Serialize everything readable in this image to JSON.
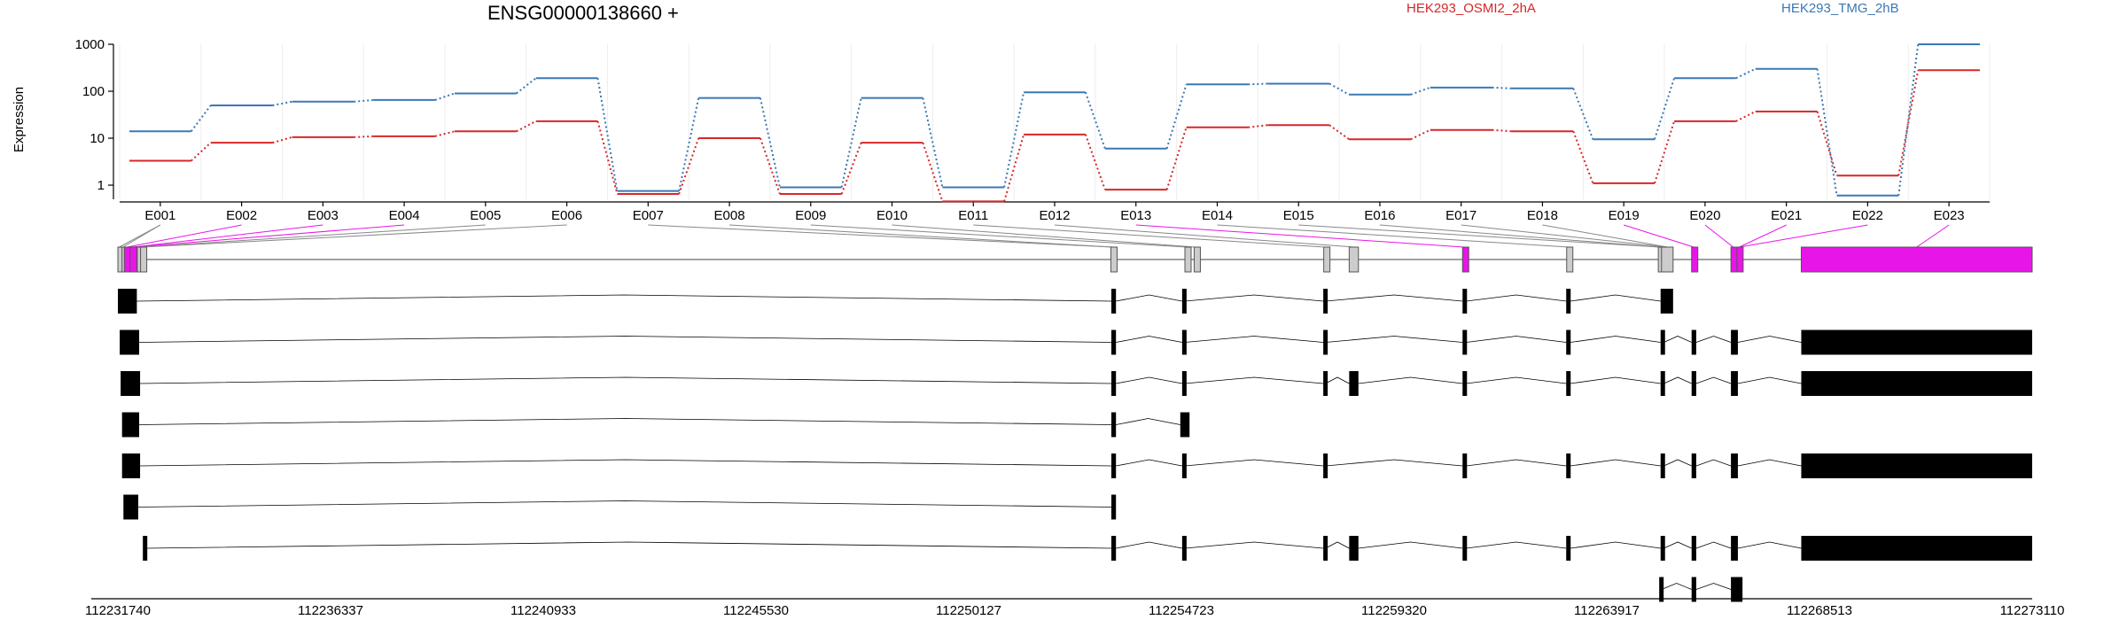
{
  "chart_data": {
    "type": "line",
    "title": "ENSG00000138660 +",
    "ylabel": "Expression",
    "yscale": "log",
    "ylim": [
      0.5,
      1000
    ],
    "yticks": [
      "1",
      "10",
      "100",
      "1000"
    ],
    "grid": true,
    "legend_position": "top",
    "series": [
      {
        "name": "HEK293_OSMI2_2hA",
        "color": "#d62728",
        "values": [
          3.3,
          8,
          10.5,
          11,
          14,
          23,
          0.65,
          10,
          0.65,
          8,
          0.45,
          12,
          0.8,
          17,
          19,
          9.5,
          15,
          14,
          1.1,
          23,
          37,
          1.6,
          280
        ]
      },
      {
        "name": "HEK293_TMG_2hB",
        "color": "#3a78b4",
        "values": [
          14,
          50,
          60,
          65,
          90,
          190,
          0.75,
          72,
          0.9,
          72,
          0.9,
          95,
          6,
          140,
          145,
          85,
          120,
          115,
          9.5,
          190,
          300,
          0.6,
          1000
        ]
      }
    ],
    "exons": [
      "E001",
      "E002",
      "E003",
      "E004",
      "E005",
      "E006",
      "E007",
      "E008",
      "E009",
      "E010",
      "E011",
      "E012",
      "E013",
      "E014",
      "E015",
      "E016",
      "E017",
      "E018",
      "E019",
      "E020",
      "E021",
      "E022",
      "E023"
    ],
    "genomic_axis": {
      "range": [
        112231740,
        112273110
      ],
      "tick_labels": [
        "112231740",
        "112236337",
        "112240933",
        "112245530",
        "112250127",
        "112254723",
        "112259320",
        "112263917",
        "112268513",
        "112273110"
      ]
    },
    "gene_model": {
      "significant_color": "#e815e8",
      "exon_fill": "#cccccc",
      "exons": [
        {
          "start": 112231740,
          "end": 112231800,
          "sig": false
        },
        {
          "start": 112231830,
          "end": 112231870,
          "sig": false
        },
        {
          "start": 112231880,
          "end": 112232000,
          "sig": true
        },
        {
          "start": 112232000,
          "end": 112232150,
          "sig": true
        },
        {
          "start": 112232160,
          "end": 112232220,
          "sig": false
        },
        {
          "start": 112232230,
          "end": 112232300,
          "sig": false
        },
        {
          "start": 112253200,
          "end": 112253300,
          "sig": false
        },
        {
          "start": 112254800,
          "end": 112254900,
          "sig": false
        },
        {
          "start": 112255000,
          "end": 112255050,
          "sig": false
        },
        {
          "start": 112257800,
          "end": 112257850,
          "sig": false
        },
        {
          "start": 112258350,
          "end": 112258550,
          "sig": false
        },
        {
          "start": 112260800,
          "end": 112260900,
          "sig": true
        },
        {
          "start": 112263050,
          "end": 112263150,
          "sig": false
        },
        {
          "start": 112265030,
          "end": 112265100,
          "sig": false
        },
        {
          "start": 112265100,
          "end": 112265350,
          "sig": false
        },
        {
          "start": 112265750,
          "end": 112265850,
          "sig": true
        },
        {
          "start": 112266600,
          "end": 112266700,
          "sig": true
        },
        {
          "start": 112266730,
          "end": 112266830,
          "sig": true
        },
        {
          "start": 112268120,
          "end": 112273110,
          "sig": true
        }
      ],
      "mapping": [
        {
          "exon": "E001",
          "parts": [
            0,
            1
          ]
        },
        {
          "exon": "E002",
          "parts": [
            2
          ]
        },
        {
          "exon": "E003",
          "parts": [
            3
          ]
        },
        {
          "exon": "E004",
          "parts": [
            3
          ]
        },
        {
          "exon": "E005",
          "parts": [
            4
          ]
        },
        {
          "exon": "E006",
          "parts": [
            5
          ]
        },
        {
          "exon": "E007",
          "parts": [
            6
          ]
        },
        {
          "exon": "E008",
          "parts": [
            6
          ]
        },
        {
          "exon": "E009",
          "parts": [
            7
          ]
        },
        {
          "exon": "E010",
          "parts": [
            8
          ]
        },
        {
          "exon": "E011",
          "parts": [
            9
          ]
        },
        {
          "exon": "E012",
          "parts": [
            10
          ]
        },
        {
          "exon": "E013",
          "parts": [
            11
          ]
        },
        {
          "exon": "E014",
          "parts": [
            12
          ]
        },
        {
          "exon": "E015",
          "parts": [
            13
          ]
        },
        {
          "exon": "E016",
          "parts": [
            13
          ]
        },
        {
          "exon": "E017",
          "parts": [
            14
          ]
        },
        {
          "exon": "E018",
          "parts": [
            14
          ]
        },
        {
          "exon": "E019",
          "parts": [
            15
          ]
        },
        {
          "exon": "E020",
          "parts": [
            16
          ]
        },
        {
          "exon": "E021",
          "parts": [
            17
          ]
        },
        {
          "exon": "E022",
          "parts": [
            17
          ]
        },
        {
          "exon": "E023",
          "parts": [
            18
          ]
        }
      ]
    },
    "transcripts": [
      [
        [
          112231740,
          112232150
        ],
        [
          112253210,
          112253310
        ],
        [
          112254740,
          112254800
        ],
        [
          112257790,
          112257840
        ],
        [
          112260800,
          112260880
        ],
        [
          112263040,
          112263130
        ],
        [
          112265080,
          112265350
        ]
      ],
      [
        [
          112231780,
          112232200
        ],
        [
          112253210,
          112253310
        ],
        [
          112254740,
          112254800
        ],
        [
          112257790,
          112257840
        ],
        [
          112260800,
          112260880
        ],
        [
          112263040,
          112263130
        ],
        [
          112265080,
          112265150
        ],
        [
          112265750,
          112265850
        ],
        [
          112266600,
          112266750
        ],
        [
          112268120,
          112273110
        ]
      ],
      [
        [
          112231800,
          112232220
        ],
        [
          112253210,
          112253310
        ],
        [
          112254740,
          112254800
        ],
        [
          112257790,
          112257840
        ],
        [
          112258350,
          112258550
        ],
        [
          112260800,
          112260880
        ],
        [
          112263040,
          112263130
        ],
        [
          112265080,
          112265150
        ],
        [
          112265750,
          112265850
        ],
        [
          112266600,
          112266750
        ],
        [
          112268120,
          112273110
        ]
      ],
      [
        [
          112231830,
          112232200
        ],
        [
          112253210,
          112253310
        ],
        [
          112254700,
          112254900
        ]
      ],
      [
        [
          112231830,
          112232220
        ],
        [
          112253210,
          112253310
        ],
        [
          112254740,
          112254800
        ],
        [
          112257790,
          112257840
        ],
        [
          112260800,
          112260880
        ],
        [
          112263040,
          112263130
        ],
        [
          112265080,
          112265150
        ],
        [
          112265750,
          112265850
        ],
        [
          112266600,
          112266750
        ],
        [
          112268120,
          112273110
        ]
      ],
      [
        [
          112231860,
          112232180
        ],
        [
          112253210,
          112253310
        ]
      ],
      [
        [
          112232280,
          112232350
        ],
        [
          112253210,
          112253310
        ],
        [
          112254740,
          112254800
        ],
        [
          112257790,
          112257840
        ],
        [
          112258350,
          112258550
        ],
        [
          112260800,
          112260880
        ],
        [
          112263040,
          112263130
        ],
        [
          112265080,
          112265150
        ],
        [
          112265750,
          112265850
        ],
        [
          112266600,
          112266750
        ],
        [
          112268120,
          112273110
        ]
      ],
      [
        [
          112265050,
          112265100
        ],
        [
          112265750,
          112265850
        ],
        [
          112266600,
          112266850
        ]
      ]
    ]
  }
}
